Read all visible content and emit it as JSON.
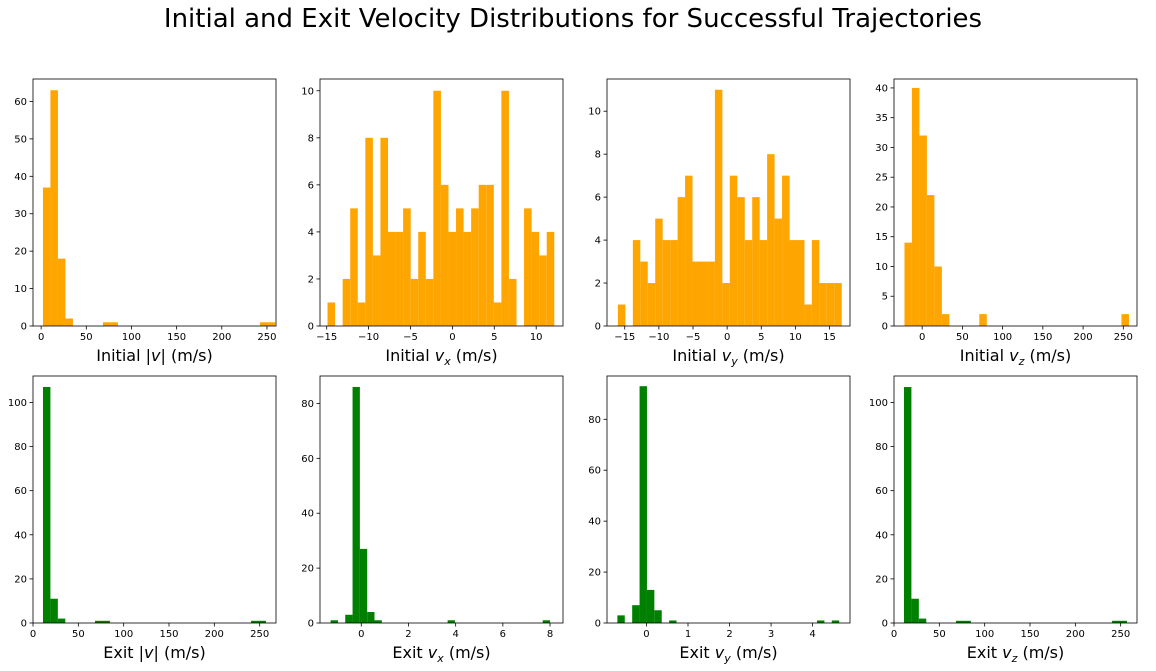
{
  "title": "Initial and Exit Velocity Distributions for Successful Trajectories",
  "colors": {
    "initial": "#ffa500",
    "exit": "#008000",
    "axis": "#000000",
    "background": "#ffffff"
  },
  "chart_data": [
    {
      "id": "init-speed",
      "type": "bar",
      "color": "#ffa500",
      "xlabel": {
        "prefix": "Initial |",
        "var": "v",
        "sub": "",
        "suffix": "| (m/s)"
      },
      "xlim": [
        -9,
        260
      ],
      "ylim": [
        0,
        66
      ],
      "grid": false,
      "xticks": [
        0,
        50,
        100,
        150,
        200,
        250
      ],
      "yticks": [
        0,
        10,
        20,
        30,
        40,
        50,
        60
      ],
      "bins": [
        {
          "x0": 2,
          "x1": 10.3,
          "y": 37
        },
        {
          "x0": 10.3,
          "x1": 18.6,
          "y": 63
        },
        {
          "x0": 18.6,
          "x1": 26.9,
          "y": 18
        },
        {
          "x0": 26.9,
          "x1": 35.2,
          "y": 2
        },
        {
          "x0": 68.4,
          "x1": 76.7,
          "y": 1
        },
        {
          "x0": 76.7,
          "x1": 85,
          "y": 1
        },
        {
          "x0": 242.4,
          "x1": 250.7,
          "y": 1
        },
        {
          "x0": 250.7,
          "x1": 259,
          "y": 1
        }
      ]
    },
    {
      "id": "init-vx",
      "type": "bar",
      "color": "#ffa500",
      "xlabel": {
        "prefix": "Initial ",
        "var": "v",
        "sub": "x",
        "suffix": " (m/s)"
      },
      "xlim": [
        -15.8,
        13.2
      ],
      "ylim": [
        0,
        10.5
      ],
      "grid": false,
      "xticks": [
        -15,
        -10,
        -5,
        0,
        5,
        10
      ],
      "yticks": [
        0,
        2,
        4,
        6,
        8,
        10
      ],
      "start": -14.9,
      "width": 0.902,
      "values": [
        1,
        0,
        2,
        5,
        1,
        8,
        3,
        8,
        4,
        4,
        5,
        2,
        4,
        2,
        10,
        6,
        4,
        5,
        4,
        5,
        6,
        6,
        1,
        10,
        2,
        0,
        5,
        4,
        3,
        4
      ]
    },
    {
      "id": "init-vy",
      "type": "bar",
      "color": "#ffa500",
      "xlabel": {
        "prefix": "Initial ",
        "var": "v",
        "sub": "y",
        "suffix": " (m/s)"
      },
      "xlim": [
        -17.6,
        18.0
      ],
      "ylim": [
        0,
        11.5
      ],
      "grid": false,
      "xticks": [
        -15,
        -10,
        -5,
        0,
        5,
        10,
        15
      ],
      "yticks": [
        0,
        2,
        4,
        6,
        8,
        10
      ],
      "start": -16.0,
      "width": 1.093,
      "values": [
        1,
        0,
        4,
        3,
        2,
        5,
        4,
        4,
        6,
        7,
        3,
        3,
        3,
        11,
        2,
        7,
        6,
        4,
        6,
        4,
        8,
        5,
        7,
        4,
        4,
        1,
        4,
        2,
        2,
        2
      ]
    },
    {
      "id": "init-vz",
      "type": "bar",
      "color": "#ffa500",
      "xlabel": {
        "prefix": "Initial ",
        "var": "v",
        "sub": "z",
        "suffix": " (m/s)"
      },
      "xlim": [
        -35,
        267
      ],
      "ylim": [
        0,
        41.5
      ],
      "grid": false,
      "xticks": [
        0,
        50,
        100,
        150,
        200,
        250
      ],
      "yticks": [
        0,
        5,
        10,
        15,
        20,
        25,
        30,
        35,
        40
      ],
      "start": -22,
      "width": 9.3,
      "values": [
        14,
        40,
        32,
        22,
        10,
        2,
        0,
        0,
        0,
        0,
        2,
        0,
        0,
        0,
        0,
        0,
        0,
        0,
        0,
        0,
        0,
        0,
        0,
        0,
        0,
        0,
        0,
        0,
        0,
        2
      ]
    },
    {
      "id": "exit-speed",
      "type": "bar",
      "color": "#008000",
      "xlabel": {
        "prefix": "Exit |",
        "var": "v",
        "sub": "",
        "suffix": "| (m/s)"
      },
      "xlim": [
        0,
        268
      ],
      "ylim": [
        0,
        112
      ],
      "grid": false,
      "xticks": [
        0,
        50,
        100,
        150,
        200,
        250
      ],
      "yticks": [
        0,
        20,
        40,
        60,
        80,
        100
      ],
      "bins": [
        {
          "x0": 11,
          "x1": 19.2,
          "y": 107
        },
        {
          "x0": 19.2,
          "x1": 27.4,
          "y": 11
        },
        {
          "x0": 27.4,
          "x1": 35.6,
          "y": 2
        },
        {
          "x0": 68.4,
          "x1": 76.6,
          "y": 1
        },
        {
          "x0": 76.6,
          "x1": 84.8,
          "y": 1
        },
        {
          "x0": 240.5,
          "x1": 248.7,
          "y": 1
        },
        {
          "x0": 248.7,
          "x1": 256.9,
          "y": 1
        }
      ]
    },
    {
      "id": "exit-vx",
      "type": "bar",
      "color": "#008000",
      "xlabel": {
        "prefix": "Exit ",
        "var": "v",
        "sub": "x",
        "suffix": " (m/s)"
      },
      "xlim": [
        -1.75,
        8.55
      ],
      "ylim": [
        0,
        90
      ],
      "grid": false,
      "xticks": [
        0,
        2,
        4,
        6,
        8
      ],
      "yticks": [
        0,
        20,
        40,
        60,
        80
      ],
      "start": -1.3,
      "width": 0.31,
      "values": [
        1,
        0,
        3,
        86,
        27,
        4,
        1,
        0,
        0,
        0,
        0,
        0,
        0,
        0,
        0,
        0,
        1,
        0,
        0,
        0,
        0,
        0,
        0,
        0,
        0,
        0,
        0,
        0,
        0,
        1
      ]
    },
    {
      "id": "exit-vy",
      "type": "bar",
      "color": "#008000",
      "xlabel": {
        "prefix": "Exit ",
        "var": "v",
        "sub": "y",
        "suffix": " (m/s)"
      },
      "xlim": [
        -0.95,
        4.9
      ],
      "ylim": [
        0,
        97
      ],
      "grid": false,
      "xticks": [
        0,
        1,
        2,
        3,
        4
      ],
      "yticks": [
        0,
        20,
        40,
        60,
        80
      ],
      "start": -0.7,
      "width": 0.178,
      "values": [
        3,
        0,
        7,
        93,
        13,
        5,
        0,
        1,
        0,
        0,
        0,
        0,
        0,
        0,
        0,
        0,
        0,
        0,
        0,
        0,
        0,
        0,
        0,
        0,
        0,
        0,
        0,
        1,
        0,
        1
      ]
    },
    {
      "id": "exit-vz",
      "type": "bar",
      "color": "#008000",
      "xlabel": {
        "prefix": "Exit ",
        "var": "v",
        "sub": "z",
        "suffix": " (m/s)"
      },
      "xlim": [
        0,
        268
      ],
      "ylim": [
        0,
        112
      ],
      "grid": false,
      "xticks": [
        0,
        50,
        100,
        150,
        200,
        250
      ],
      "yticks": [
        0,
        20,
        40,
        60,
        80,
        100
      ],
      "bins": [
        {
          "x0": 11,
          "x1": 19.2,
          "y": 107
        },
        {
          "x0": 19.2,
          "x1": 27.4,
          "y": 11
        },
        {
          "x0": 27.4,
          "x1": 35.6,
          "y": 2
        },
        {
          "x0": 68.4,
          "x1": 76.6,
          "y": 1
        },
        {
          "x0": 76.6,
          "x1": 84.8,
          "y": 1
        },
        {
          "x0": 240.5,
          "x1": 248.7,
          "y": 1
        },
        {
          "x0": 248.7,
          "x1": 256.9,
          "y": 1
        }
      ]
    }
  ]
}
